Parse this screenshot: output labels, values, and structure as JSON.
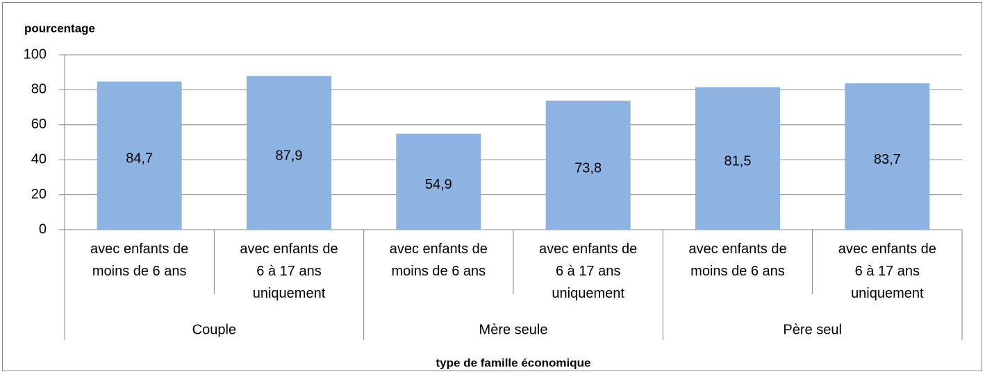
{
  "chart_data": {
    "type": "bar",
    "y_label": "pourcentage",
    "x_label": "type de famille économique",
    "categories": [
      "avec enfants de moins de 6 ans",
      "avec enfants de 6 à 17 ans uniquement",
      "avec enfants de moins de 6 ans",
      "avec enfants de 6 à 17 ans uniquement",
      "avec enfants de moins de 6 ans",
      "avec enfants de 6 à 17 ans uniquement"
    ],
    "groups": [
      "Couple",
      "Mère seule",
      "Père seul"
    ],
    "values": [
      84.7,
      87.9,
      54.9,
      73.8,
      81.5,
      83.7
    ],
    "value_labels": [
      "84,7",
      "87,9",
      "54,9",
      "73,8",
      "81,5",
      "83,7"
    ],
    "color": "#8db3e2",
    "ylim": [
      0,
      100
    ],
    "yticks": [
      0,
      20,
      40,
      60,
      80,
      100
    ],
    "grid": true
  }
}
